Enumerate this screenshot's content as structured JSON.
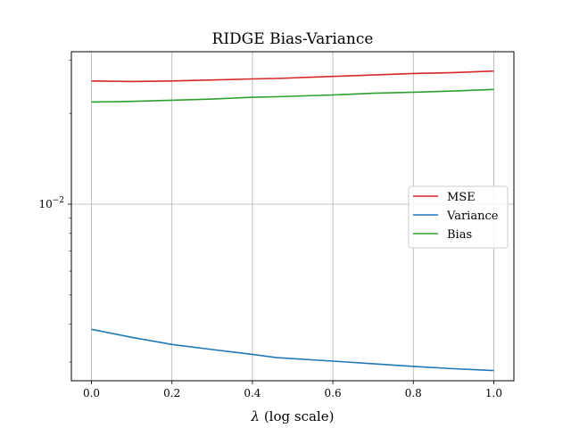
{
  "chart_data": {
    "type": "line",
    "title": "RIDGE Bias-Variance",
    "xlabel_symbol": "λ",
    "xlabel_suffix": " (log scale)",
    "ylabel": "",
    "xlim": [
      -0.05,
      1.05
    ],
    "ylim": [
      0.0026,
      0.032
    ],
    "yscale": "log",
    "grid": true,
    "legend_position": "center-right",
    "x_ticks": [
      "0.0",
      "0.2",
      "0.4",
      "0.6",
      "0.8",
      "1.0"
    ],
    "y_tick": {
      "base": "10",
      "exponent": "−2",
      "value": 0.01
    },
    "x": [
      0.0,
      0.1,
      0.2,
      0.3,
      0.4,
      0.46,
      0.6,
      0.7,
      0.8,
      0.9,
      1.0
    ],
    "series": [
      {
        "name": "MSE",
        "color": "#d62728",
        "values": [
          0.0256,
          0.0255,
          0.0256,
          0.0258,
          0.026,
          0.0261,
          0.0265,
          0.0268,
          0.0271,
          0.0273,
          0.0276
        ]
      },
      {
        "name": "Variance",
        "color": "#1f77b4",
        "values": [
          0.00385,
          0.00362,
          0.00343,
          0.0033,
          0.00318,
          0.0031,
          0.00302,
          0.00296,
          0.0029,
          0.00285,
          0.00281
        ]
      },
      {
        "name": "Bias",
        "color": "#2ca02c",
        "values": [
          0.0218,
          0.0219,
          0.0221,
          0.0223,
          0.0226,
          0.0227,
          0.023,
          0.0233,
          0.0235,
          0.0237,
          0.024
        ]
      }
    ]
  }
}
